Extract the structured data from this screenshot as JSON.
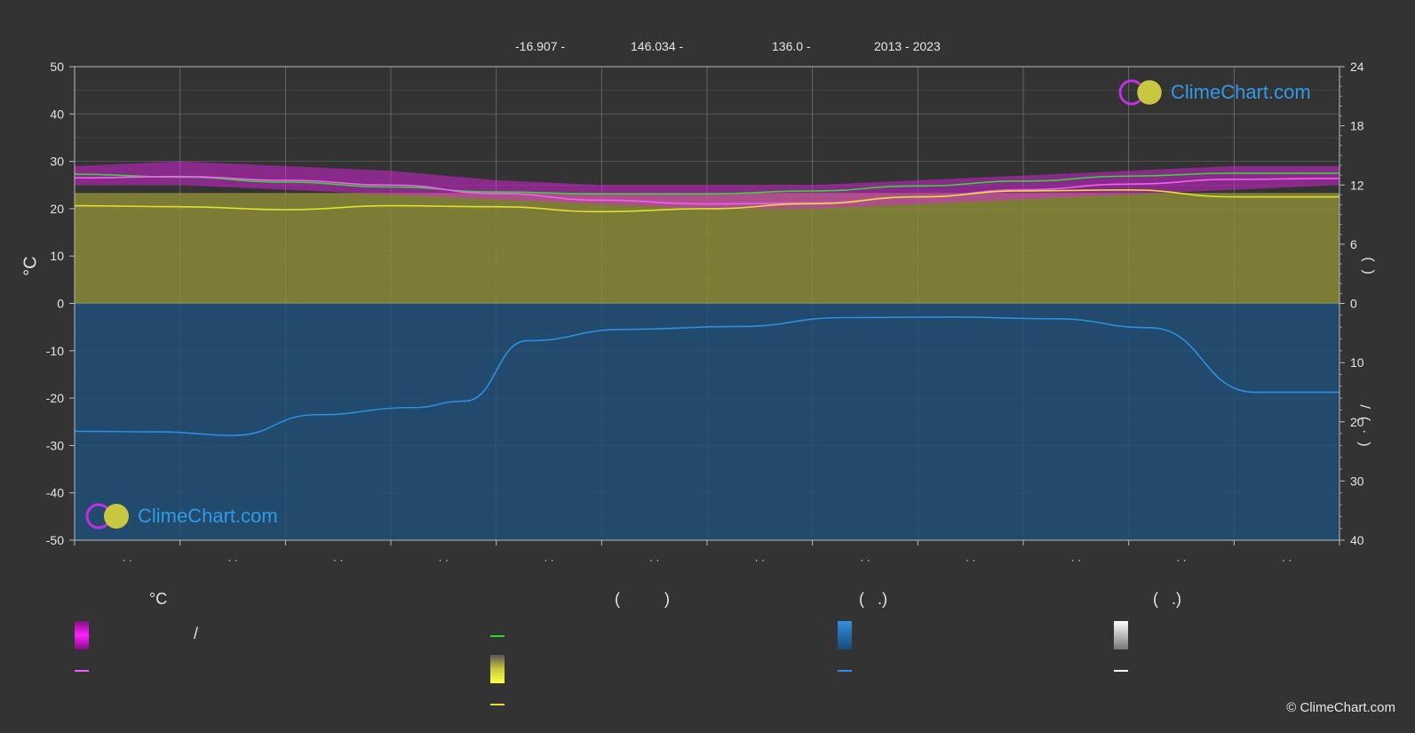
{
  "header": {
    "lat": "-16.907 -",
    "lon": "146.034 -",
    "elev": "136.0 -",
    "years": "2013 - 2023"
  },
  "logo": {
    "text": "ClimeChart.com"
  },
  "copyright": "© ClimeChart.com",
  "axes": {
    "left_title": "°C",
    "right_top_title": "(  )",
    "right_bottom_title": "/  (  ·  )"
  },
  "legend": {
    "temp_header": "°C",
    "sun_header": "(          )",
    "rain_header": "(   .)",
    "snow_header": "(   .)",
    "temp_range_label": "/"
  },
  "colors": {
    "background": "#333333",
    "grid": "#6a6a6a",
    "max_min_band": "#e020e0",
    "daylight_line": "#33d633",
    "sunshine_band": "#b0b040",
    "sunshine_line": "#e0e030",
    "rain_band": "#2a5f8f",
    "rain_line": "#2e8fe0",
    "mean_temp_line": "#f060f0",
    "snow_line": "#ffffff"
  },
  "chart_data": {
    "type": "line",
    "months_count": 12,
    "month_labels": [
      "· ·",
      "· ·",
      "· ·",
      "· ·",
      "· ·",
      "· ·",
      "· ·",
      "· ·",
      "· ·",
      "· ·",
      "· ·",
      "· ·"
    ],
    "left_axis": {
      "unit": "°C",
      "ylim": [
        -50,
        50
      ],
      "ticks": [
        50,
        40,
        30,
        20,
        10,
        0,
        -10,
        -20,
        -30,
        -40,
        -50
      ]
    },
    "right_axis_top": {
      "ylim": [
        0,
        24
      ],
      "ticks": [
        24,
        18,
        12,
        6,
        0
      ]
    },
    "right_axis_bottom": {
      "ylim": [
        0,
        40
      ],
      "ticks": [
        0,
        10,
        20,
        30,
        40
      ]
    },
    "series": [
      {
        "key": "daylight",
        "axis": "right_top",
        "color": "#33d633",
        "x": [
          0,
          1,
          2,
          3,
          4,
          5,
          6,
          7,
          8,
          9,
          10,
          11,
          12
        ],
        "values": [
          13.1,
          12.8,
          12.3,
          11.8,
          11.3,
          11.1,
          11.1,
          11.4,
          11.9,
          12.4,
          12.9,
          13.2,
          13.2
        ]
      },
      {
        "key": "mean_temp",
        "axis": "left",
        "color": "#f060f0",
        "x": [
          0,
          1,
          2,
          3,
          4,
          5,
          6,
          7,
          8,
          9,
          10,
          11,
          12
        ],
        "values": [
          26.5,
          26.8,
          26.0,
          25.0,
          23.2,
          21.8,
          21.0,
          21.2,
          22.5,
          24.0,
          25.2,
          26.2,
          26.4
        ]
      },
      {
        "key": "sunshine",
        "axis": "right_top",
        "color": "#e0e030",
        "x": [
          0,
          1,
          2,
          3,
          4,
          5,
          6,
          7,
          8,
          9,
          10,
          11,
          12
        ],
        "values": [
          9.9,
          9.8,
          9.5,
          9.9,
          9.8,
          9.3,
          9.6,
          10.1,
          10.8,
          11.4,
          11.5,
          10.8,
          10.8
        ]
      },
      {
        "key": "rain_daily",
        "axis": "right_bottom",
        "color": "#2e8fe0",
        "x": [
          0,
          0.8,
          1.5,
          2.3,
          3.2,
          3.7,
          4.3,
          5.2,
          6.3,
          7.3,
          8.3,
          9.3,
          10.2,
          11.2,
          12
        ],
        "values": [
          21.6,
          21.7,
          22.3,
          18.8,
          17.6,
          16.5,
          6.3,
          4.4,
          3.9,
          2.4,
          2.3,
          2.6,
          4.1,
          15.0,
          15.0
        ]
      }
    ],
    "bands": [
      {
        "key": "temp_range",
        "axis": "left",
        "color": "#e020e0",
        "upper": [
          29,
          30,
          29,
          28,
          26,
          25,
          25,
          25,
          26,
          27,
          28,
          29,
          29
        ],
        "lower": [
          25,
          25,
          24,
          23,
          22,
          21,
          20,
          20,
          21,
          22,
          23,
          24,
          25
        ]
      },
      {
        "key": "sunshine_fill",
        "axis": "right_top",
        "color": "#9a9a3a"
      },
      {
        "key": "rain_fill",
        "axis": "right_bottom",
        "color": "#255a87"
      }
    ]
  }
}
